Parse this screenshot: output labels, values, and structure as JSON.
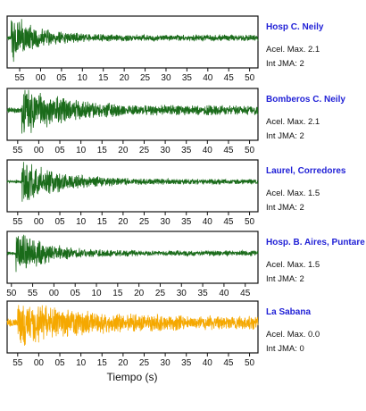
{
  "chart_data": {
    "type": "line",
    "xlabel": "Tiempo (s)",
    "colors": {
      "default": "#1a6b1a",
      "highlight": "#f5a800"
    },
    "panels": [
      {
        "station": "Hosp C. Neily",
        "accel": "Acel. Max. 2.1",
        "jma": "Int JMA: 2",
        "x_ticks": [
          "55",
          "00",
          "05",
          "10",
          "15",
          "20",
          "25",
          "30",
          "35",
          "40",
          "45",
          "50"
        ],
        "xlim": [
          52,
          112
        ],
        "color": "#1a6b1a",
        "amplitude": {
          "onset": 53,
          "peak": 1.0,
          "decay": 0.06,
          "floor": 0.12
        }
      },
      {
        "station": "Bomberos C. Neily",
        "accel": "Acel. Max. 2.1",
        "jma": "Int JMA: 2",
        "x_ticks": [
          "55",
          "00",
          "05",
          "10",
          "15",
          "20",
          "25",
          "30",
          "35",
          "40",
          "45",
          "50"
        ],
        "xlim": [
          52.5,
          112
        ],
        "color": "#1a6b1a",
        "amplitude": {
          "onset": 56,
          "peak": 1.0,
          "decay": 0.035,
          "floor": 0.18
        }
      },
      {
        "station": "Laurel, Corredores",
        "accel": "Acel. Max. 1.5",
        "jma": "Int JMA: 2",
        "x_ticks": [
          "55",
          "00",
          "05",
          "10",
          "15",
          "20",
          "25",
          "30",
          "35",
          "40",
          "45",
          "50"
        ],
        "xlim": [
          52.5,
          112
        ],
        "color": "#1a6b1a",
        "amplitude": {
          "onset": 56,
          "peak": 0.9,
          "decay": 0.04,
          "floor": 0.1
        }
      },
      {
        "station": "Hosp. B. Aires, Puntare",
        "accel": "Acel. Max. 1.5",
        "jma": "Int JMA: 2",
        "x_ticks": [
          "50",
          "55",
          "00",
          "05",
          "10",
          "15",
          "20",
          "25",
          "30",
          "35",
          "40",
          "45"
        ],
        "xlim": [
          49,
          108
        ],
        "color": "#1a6b1a",
        "amplitude": {
          "onset": 51,
          "peak": 1.0,
          "decay": 0.05,
          "floor": 0.1
        }
      },
      {
        "station": "La Sabana",
        "accel": "Acel. Max. 0.0",
        "jma": "Int JMA: 0",
        "x_ticks": [
          "55",
          "00",
          "05",
          "10",
          "15",
          "20",
          "25",
          "30",
          "35",
          "40",
          "45",
          "50"
        ],
        "xlim": [
          52.5,
          112
        ],
        "color": "#f5a800",
        "amplitude": {
          "onset": 55,
          "peak": 0.95,
          "decay": 0.025,
          "floor": 0.25
        }
      }
    ]
  }
}
